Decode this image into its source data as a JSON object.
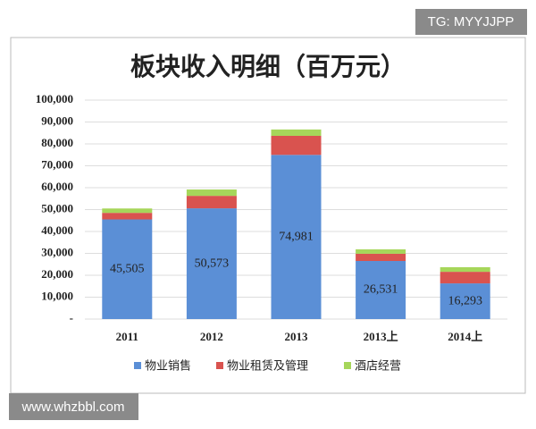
{
  "chart_data": {
    "type": "stacked_bar",
    "title": "板块收入明细（百万元）",
    "categories": [
      "2011",
      "2012",
      "2013",
      "2013上",
      "2014上"
    ],
    "series": [
      {
        "name": "物业销售",
        "color": "#5b8fd6",
        "values": [
          45505,
          50573,
          74981,
          26531,
          16293
        ],
        "value_labels": [
          "45,505",
          "50,573",
          "74,981",
          "26,531",
          "16,293"
        ]
      },
      {
        "name": "物业租赁及管理",
        "color": "#d9534f",
        "values": [
          3000,
          5700,
          8700,
          3300,
          5300
        ]
      },
      {
        "name": "酒店经营",
        "color": "#a6d65a",
        "values": [
          2000,
          2900,
          2900,
          2000,
          2100
        ]
      }
    ],
    "ylim": [
      0,
      100000
    ],
    "yticks": [
      {
        "value": 0,
        "label": "-"
      },
      {
        "value": 10000,
        "label": "10,000"
      },
      {
        "value": 20000,
        "label": "20,000"
      },
      {
        "value": 30000,
        "label": "30,000"
      },
      {
        "value": 40000,
        "label": "40,000"
      },
      {
        "value": 50000,
        "label": "50,000"
      },
      {
        "value": 60000,
        "label": "60,000"
      },
      {
        "value": 70000,
        "label": "70,000"
      },
      {
        "value": 80000,
        "label": "80,000"
      },
      {
        "value": 90000,
        "label": "90,000"
      },
      {
        "value": 100000,
        "label": "100,000"
      }
    ],
    "grid": true
  },
  "watermarks": [
    "TG: MYYJJPP",
    "www.whzbbl.com"
  ]
}
